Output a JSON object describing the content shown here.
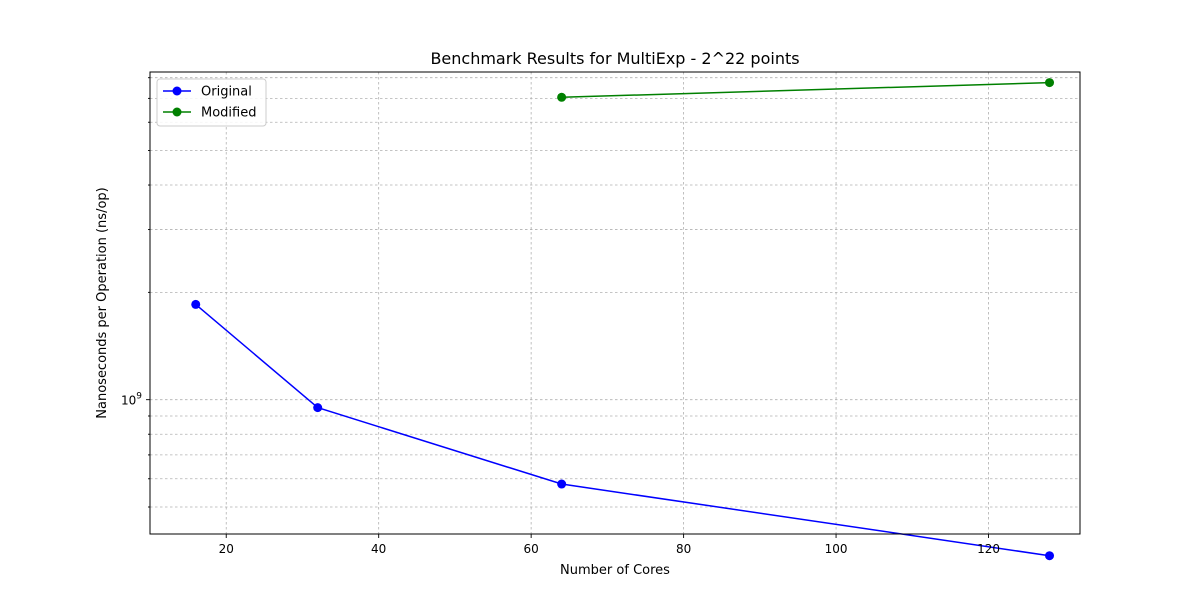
{
  "chart_data": {
    "type": "line",
    "title": "Benchmark Results for MultiExp - 2^22 points",
    "xlabel": "Number of Cores",
    "ylabel": "Nanoseconds per Operation (ns/op)",
    "xlim": [
      10,
      132
    ],
    "ylim": [
      420000000,
      8300000000
    ],
    "yscale": "log",
    "grid": true,
    "legend_position": "top-left",
    "x_ticks": [
      20,
      40,
      60,
      80,
      100,
      120
    ],
    "x_tick_labels": [
      "20",
      "40",
      "60",
      "80",
      "100",
      "120"
    ],
    "y_tick_labels": [
      {
        "value": 1000000000,
        "base": "10",
        "exp": "9"
      }
    ],
    "series": [
      {
        "name": "Original",
        "color": "#0000ff",
        "x": [
          16,
          32,
          64,
          128
        ],
        "y": [
          1850000000,
          950000000,
          580000000,
          365000000
        ]
      },
      {
        "name": "Modified",
        "color": "#008000",
        "x": [
          64,
          128
        ],
        "y": [
          7050000000,
          7750000000
        ]
      }
    ]
  }
}
